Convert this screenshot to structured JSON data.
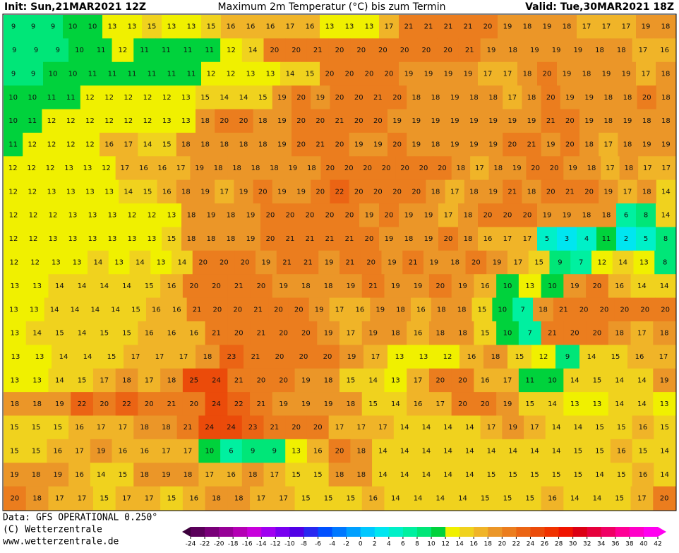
{
  "header": {
    "init": "Init: Sun,21MAR2021 12Z",
    "title": "Maximum 2m Temperatur (°C) bis zum Termin",
    "valid": "Valid: Tue,30MAR2021 18Z"
  },
  "footer": {
    "data": "Data: GFS OPERATIONAL 0.250°",
    "copyright": "(C) Wetterzentrale",
    "url": "www.wetterzentrale.de"
  },
  "colorbar": {
    "ticks": [
      -24,
      -22,
      -20,
      -18,
      -16,
      -14,
      -12,
      -10,
      -8,
      -6,
      -4,
      -2,
      0,
      2,
      4,
      6,
      8,
      10,
      12,
      14,
      16,
      18,
      20,
      22,
      24,
      26,
      28,
      30,
      32,
      34,
      36,
      38,
      40,
      42
    ],
    "colors": [
      "#3c003c",
      "#5a005a",
      "#780078",
      "#960096",
      "#b400b4",
      "#c800dc",
      "#a000f0",
      "#7800f0",
      "#5000e6",
      "#2828f0",
      "#0050ff",
      "#0078ff",
      "#00a0ff",
      "#00c8ff",
      "#00e6f0",
      "#00f0c8",
      "#00f0a0",
      "#00e678",
      "#00d23c",
      "#f0f000",
      "#f0d21e",
      "#f0b428",
      "#eb9628",
      "#eb7d1e",
      "#eb6414",
      "#eb4b0a",
      "#f03200",
      "#f01400",
      "#dc0014",
      "#e6003c",
      "#f00064",
      "#ff0096",
      "#ff00c8",
      "#ff00f0"
    ]
  },
  "grid": {
    "rows": [
      [
        9,
        9,
        9,
        10,
        10,
        13,
        13,
        15,
        13,
        13,
        15,
        16,
        16,
        16,
        17,
        16,
        13,
        13,
        13,
        17,
        21,
        21,
        21,
        21,
        20,
        19,
        18,
        19,
        18,
        17,
        17,
        17,
        19,
        18
      ],
      [
        9,
        9,
        9,
        10,
        11,
        12,
        11,
        11,
        11,
        11,
        12,
        14,
        20,
        20,
        21,
        20,
        20,
        20,
        20,
        20,
        20,
        21,
        19,
        18,
        19,
        19,
        19,
        18,
        18,
        17,
        16
      ],
      [
        9,
        9,
        10,
        10,
        11,
        11,
        11,
        11,
        11,
        11,
        12,
        12,
        13,
        13,
        14,
        15,
        20,
        20,
        20,
        20,
        19,
        19,
        19,
        19,
        17,
        17,
        18,
        20,
        19,
        18,
        19,
        19,
        17,
        18
      ],
      [
        10,
        10,
        11,
        11,
        12,
        12,
        12,
        12,
        12,
        13,
        15,
        14,
        14,
        15,
        19,
        20,
        19,
        20,
        20,
        21,
        20,
        18,
        18,
        19,
        18,
        18,
        17,
        18,
        20,
        19,
        19,
        18,
        18,
        20,
        18
      ],
      [
        10,
        11,
        12,
        12,
        12,
        12,
        12,
        12,
        13,
        13,
        18,
        20,
        20,
        18,
        19,
        20,
        20,
        21,
        20,
        20,
        19,
        19,
        19,
        19,
        19,
        19,
        19,
        19,
        21,
        20,
        19,
        18,
        19,
        18,
        18
      ],
      [
        11,
        12,
        12,
        12,
        12,
        16,
        17,
        14,
        15,
        18,
        18,
        18,
        18,
        18,
        19,
        20,
        21,
        20,
        19,
        19,
        20,
        19,
        18,
        19,
        19,
        19,
        20,
        21,
        19,
        20,
        18,
        17,
        18,
        19,
        19
      ],
      [
        12,
        12,
        12,
        13,
        13,
        12,
        17,
        16,
        16,
        17,
        19,
        18,
        18,
        18,
        18,
        19,
        18,
        20,
        20,
        20,
        20,
        20,
        20,
        20,
        18,
        17,
        18,
        19,
        20,
        20,
        19,
        18,
        17,
        18,
        17,
        17
      ],
      [
        12,
        12,
        13,
        13,
        13,
        13,
        14,
        15,
        16,
        18,
        19,
        17,
        19,
        20,
        19,
        19,
        20,
        22,
        20,
        20,
        20,
        20,
        18,
        17,
        18,
        19,
        21,
        18,
        20,
        21,
        20,
        19,
        17,
        18,
        14
      ],
      [
        12,
        12,
        12,
        13,
        13,
        13,
        12,
        12,
        13,
        18,
        19,
        18,
        19,
        20,
        20,
        20,
        20,
        20,
        19,
        20,
        19,
        19,
        17,
        18,
        20,
        20,
        20,
        19,
        19,
        18,
        18,
        6,
        8,
        14
      ],
      [
        12,
        12,
        13,
        13,
        13,
        13,
        13,
        13,
        15,
        18,
        18,
        18,
        19,
        20,
        21,
        21,
        21,
        21,
        20,
        19,
        18,
        19,
        20,
        18,
        16,
        17,
        17,
        5,
        3,
        4,
        11,
        2,
        5,
        8
      ],
      [
        12,
        12,
        13,
        13,
        14,
        13,
        14,
        13,
        14,
        20,
        20,
        20,
        19,
        21,
        21,
        19,
        21,
        20,
        19,
        21,
        19,
        18,
        20,
        19,
        17,
        15,
        9,
        7,
        12,
        14,
        13,
        8
      ],
      [
        13,
        13,
        14,
        14,
        14,
        14,
        15,
        16,
        20,
        20,
        21,
        20,
        19,
        18,
        18,
        19,
        21,
        19,
        19,
        20,
        19,
        16,
        10,
        13,
        10,
        19,
        20,
        16,
        14,
        14
      ],
      [
        13,
        13,
        14,
        14,
        14,
        14,
        15,
        16,
        16,
        21,
        20,
        20,
        21,
        20,
        20,
        19,
        17,
        16,
        19,
        18,
        16,
        18,
        18,
        15,
        10,
        7,
        18,
        21,
        20,
        20,
        20,
        20,
        20
      ],
      [
        13,
        14,
        15,
        14,
        15,
        15,
        16,
        16,
        16,
        21,
        20,
        21,
        20,
        20,
        19,
        17,
        19,
        18,
        16,
        18,
        18,
        15,
        10,
        7,
        21,
        20,
        20,
        18,
        17,
        18
      ],
      [
        13,
        13,
        14,
        14,
        15,
        17,
        17,
        17,
        18,
        23,
        21,
        20,
        20,
        20,
        19,
        17,
        13,
        13,
        12,
        16,
        18,
        15,
        12,
        9,
        14,
        15,
        16,
        17
      ],
      [
        13,
        13,
        14,
        15,
        17,
        18,
        17,
        18,
        25,
        24,
        21,
        20,
        20,
        19,
        18,
        15,
        14,
        13,
        17,
        20,
        20,
        16,
        17,
        11,
        10,
        14,
        15,
        14,
        14,
        19
      ],
      [
        18,
        18,
        19,
        22,
        20,
        22,
        20,
        21,
        20,
        24,
        22,
        21,
        19,
        19,
        19,
        18,
        15,
        14,
        16,
        17,
        20,
        20,
        19,
        15,
        14,
        13,
        13,
        14,
        14,
        13
      ],
      [
        15,
        15,
        15,
        16,
        17,
        17,
        18,
        18,
        21,
        24,
        24,
        23,
        21,
        20,
        20,
        17,
        17,
        17,
        14,
        14,
        14,
        14,
        17,
        19,
        17,
        14,
        14,
        15,
        15,
        16,
        15
      ],
      [
        15,
        15,
        16,
        17,
        19,
        16,
        16,
        17,
        17,
        10,
        6,
        9,
        9,
        13,
        16,
        20,
        18,
        14,
        14,
        14,
        14,
        14,
        14,
        14,
        14,
        14,
        15,
        15,
        16,
        15,
        14
      ],
      [
        19,
        18,
        19,
        16,
        14,
        15,
        18,
        19,
        18,
        17,
        16,
        18,
        17,
        15,
        15,
        18,
        18,
        14,
        14,
        14,
        14,
        14,
        15,
        15,
        15,
        15,
        15,
        14,
        15,
        16,
        14
      ],
      [
        20,
        18,
        17,
        17,
        15,
        17,
        17,
        15,
        16,
        18,
        18,
        17,
        17,
        15,
        15,
        15,
        16,
        14,
        14,
        14,
        14,
        15,
        15,
        15,
        16,
        14,
        14,
        15,
        17,
        20
      ]
    ]
  }
}
